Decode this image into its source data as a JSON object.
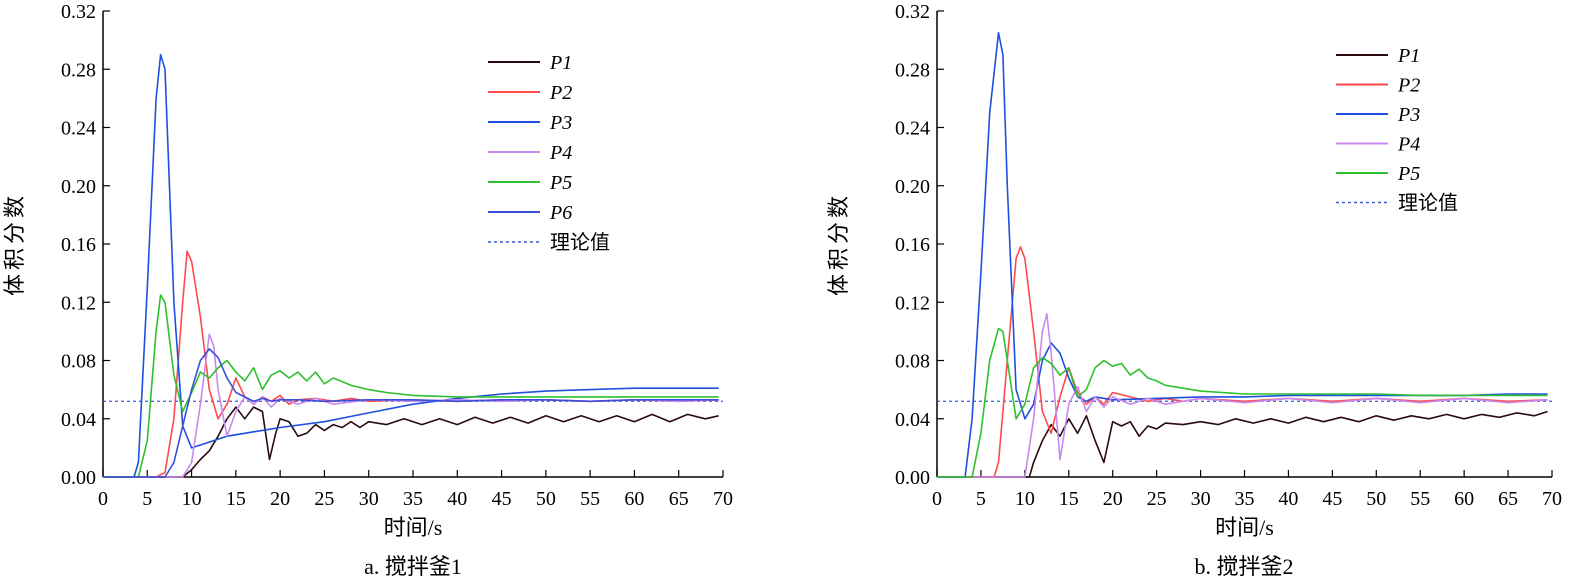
{
  "chart_data": [
    {
      "type": "line",
      "caption": "a. 搅拌釜1",
      "xlabel": "时间/s",
      "ylabel": "体积分数",
      "xlim": [
        0,
        70
      ],
      "ylim": [
        0,
        0.32
      ],
      "xticks": [
        "0",
        "5",
        "10",
        "15",
        "20",
        "25",
        "30",
        "35",
        "40",
        "45",
        "50",
        "55",
        "60",
        "65",
        "70"
      ],
      "yticks": [
        "0.00",
        "0.04",
        "0.08",
        "0.12",
        "0.16",
        "0.20",
        "0.24",
        "0.28",
        "0.32"
      ],
      "grid": false,
      "legend_position": "top-right",
      "theory_label": "理论值",
      "theory_value": 0.052,
      "series": [
        {
          "name": "P1",
          "color": "#2b0b0b",
          "x": [
            0,
            9,
            10,
            11,
            12,
            13,
            14,
            15,
            16,
            17,
            18,
            18.8,
            19.5,
            20,
            21,
            22,
            23,
            24,
            25,
            26,
            27,
            28,
            29,
            30,
            32,
            34,
            36,
            38,
            40,
            42,
            44,
            46,
            48,
            50,
            52,
            54,
            56,
            58,
            60,
            62,
            64,
            66,
            68,
            69.5
          ],
          "y": [
            0,
            0,
            0.005,
            0.012,
            0.018,
            0.028,
            0.04,
            0.048,
            0.04,
            0.048,
            0.045,
            0.012,
            0.03,
            0.04,
            0.038,
            0.028,
            0.03,
            0.036,
            0.032,
            0.036,
            0.034,
            0.038,
            0.034,
            0.038,
            0.036,
            0.04,
            0.036,
            0.04,
            0.036,
            0.041,
            0.037,
            0.041,
            0.037,
            0.042,
            0.038,
            0.042,
            0.038,
            0.042,
            0.038,
            0.043,
            0.038,
            0.043,
            0.04,
            0.042
          ]
        },
        {
          "name": "P2",
          "color": "#ff4a4a",
          "x": [
            0,
            6,
            7,
            8,
            9,
            9.5,
            10,
            11,
            12,
            13,
            14,
            15,
            16,
            17,
            18,
            19,
            20,
            21,
            22,
            24,
            26,
            28,
            30,
            35,
            40,
            45,
            50,
            55,
            60,
            65,
            69.5
          ],
          "y": [
            0,
            0,
            0.003,
            0.04,
            0.12,
            0.155,
            0.148,
            0.11,
            0.06,
            0.04,
            0.05,
            0.068,
            0.055,
            0.05,
            0.055,
            0.052,
            0.056,
            0.05,
            0.053,
            0.054,
            0.052,
            0.054,
            0.052,
            0.053,
            0.052,
            0.053,
            0.053,
            0.052,
            0.053,
            0.052,
            0.053
          ]
        },
        {
          "name": "P3",
          "color": "#1f4fe0",
          "x": [
            0,
            3.5,
            4,
            5,
            6,
            6.5,
            7,
            8,
            9,
            10,
            11,
            12,
            13,
            14,
            16,
            18,
            20,
            25,
            30,
            35,
            40,
            45,
            50,
            55,
            60,
            65,
            69.5
          ],
          "y": [
            0,
            0,
            0.01,
            0.13,
            0.26,
            0.29,
            0.28,
            0.12,
            0.035,
            0.02,
            0.022,
            0.024,
            0.026,
            0.028,
            0.03,
            0.032,
            0.034,
            0.038,
            0.044,
            0.05,
            0.054,
            0.057,
            0.059,
            0.06,
            0.061,
            0.061,
            0.061
          ]
        },
        {
          "name": "P4",
          "color": "#c98af0",
          "x": [
            0,
            9,
            10,
            11,
            12,
            12.5,
            13,
            14,
            15,
            16,
            17,
            18,
            19,
            20,
            22,
            24,
            26,
            30,
            35,
            40,
            45,
            50,
            55,
            60,
            65,
            69.5
          ],
          "y": [
            0,
            0,
            0.01,
            0.05,
            0.098,
            0.09,
            0.06,
            0.028,
            0.045,
            0.055,
            0.05,
            0.055,
            0.048,
            0.054,
            0.05,
            0.054,
            0.05,
            0.053,
            0.052,
            0.053,
            0.052,
            0.053,
            0.052,
            0.053,
            0.052,
            0.053
          ]
        },
        {
          "name": "P5",
          "color": "#2fc02f",
          "x": [
            0,
            4,
            5,
            6,
            6.5,
            7,
            8,
            9,
            10,
            11,
            12,
            13,
            14,
            15,
            16,
            17,
            18,
            19,
            20,
            21,
            22,
            23,
            24,
            25,
            26,
            28,
            30,
            32,
            35,
            40,
            45,
            50,
            55,
            60,
            65,
            69.5
          ],
          "y": [
            0,
            0,
            0.025,
            0.1,
            0.125,
            0.12,
            0.07,
            0.045,
            0.058,
            0.072,
            0.068,
            0.075,
            0.08,
            0.072,
            0.066,
            0.075,
            0.06,
            0.07,
            0.073,
            0.068,
            0.072,
            0.066,
            0.072,
            0.064,
            0.068,
            0.063,
            0.06,
            0.058,
            0.056,
            0.055,
            0.055,
            0.055,
            0.055,
            0.055,
            0.055,
            0.055
          ]
        },
        {
          "name": "P6",
          "color": "#3a4fd8",
          "x": [
            0,
            7,
            8,
            9,
            10,
            11,
            12,
            13,
            14,
            15,
            16,
            17,
            18,
            19,
            20,
            22,
            25,
            30,
            35,
            40,
            45,
            50,
            55,
            60,
            65,
            69.5
          ],
          "y": [
            0,
            0,
            0.01,
            0.035,
            0.06,
            0.08,
            0.088,
            0.082,
            0.068,
            0.058,
            0.055,
            0.052,
            0.054,
            0.052,
            0.053,
            0.053,
            0.052,
            0.053,
            0.053,
            0.052,
            0.053,
            0.053,
            0.052,
            0.053,
            0.053,
            0.053
          ]
        }
      ]
    },
    {
      "type": "line",
      "caption": "b. 搅拌釜2",
      "xlabel": "时间/s",
      "ylabel": "体积分数",
      "xlim": [
        0,
        70
      ],
      "ylim": [
        0,
        0.32
      ],
      "xticks": [
        "0",
        "5",
        "10",
        "15",
        "20",
        "25",
        "30",
        "35",
        "40",
        "45",
        "50",
        "55",
        "60",
        "65",
        "70"
      ],
      "yticks": [
        "0.00",
        "0.04",
        "0.08",
        "0.12",
        "0.16",
        "0.20",
        "0.24",
        "0.28",
        "0.32"
      ],
      "grid": false,
      "legend_position": "top-right",
      "theory_label": "理论值",
      "theory_value": 0.052,
      "series": [
        {
          "name": "P1",
          "color": "#2b0b0b",
          "x": [
            0,
            10.5,
            11,
            12,
            13,
            14,
            15,
            16,
            17,
            18,
            19,
            20,
            21,
            22,
            23,
            24,
            25,
            26,
            28,
            30,
            32,
            34,
            36,
            38,
            40,
            42,
            44,
            46,
            48,
            50,
            52,
            54,
            56,
            58,
            60,
            62,
            64,
            66,
            68,
            69.5
          ],
          "y": [
            0,
            0,
            0.01,
            0.025,
            0.036,
            0.028,
            0.04,
            0.03,
            0.042,
            0.025,
            0.01,
            0.038,
            0.035,
            0.038,
            0.028,
            0.035,
            0.033,
            0.037,
            0.036,
            0.038,
            0.036,
            0.04,
            0.037,
            0.04,
            0.037,
            0.041,
            0.038,
            0.041,
            0.038,
            0.042,
            0.039,
            0.042,
            0.04,
            0.043,
            0.04,
            0.043,
            0.041,
            0.044,
            0.042,
            0.045
          ]
        },
        {
          "name": "P2",
          "color": "#ff4a4a",
          "x": [
            0,
            6.5,
            7,
            8,
            9,
            9.5,
            10,
            11,
            12,
            13,
            14,
            15,
            16,
            17,
            18,
            19,
            20,
            22,
            24,
            26,
            28,
            30,
            35,
            40,
            45,
            50,
            55,
            60,
            65,
            69.5
          ],
          "y": [
            0,
            0,
            0.01,
            0.08,
            0.15,
            0.158,
            0.15,
            0.1,
            0.045,
            0.03,
            0.055,
            0.075,
            0.058,
            0.05,
            0.055,
            0.05,
            0.058,
            0.055,
            0.052,
            0.054,
            0.052,
            0.054,
            0.052,
            0.054,
            0.052,
            0.054,
            0.052,
            0.054,
            0.052,
            0.053
          ]
        },
        {
          "name": "P3",
          "color": "#1f4fe0",
          "x": [
            0,
            3.2,
            4,
            5,
            6,
            7,
            7.5,
            8,
            9,
            10,
            11,
            12,
            13,
            14,
            15,
            16,
            17,
            18,
            20,
            25,
            30,
            35,
            40,
            45,
            50,
            55,
            60,
            65,
            69.5
          ],
          "y": [
            0,
            0,
            0.04,
            0.14,
            0.25,
            0.305,
            0.29,
            0.2,
            0.06,
            0.04,
            0.05,
            0.08,
            0.092,
            0.085,
            0.068,
            0.055,
            0.052,
            0.055,
            0.053,
            0.054,
            0.055,
            0.055,
            0.056,
            0.056,
            0.056,
            0.056,
            0.056,
            0.057,
            0.057
          ]
        },
        {
          "name": "P4",
          "color": "#c98af0",
          "x": [
            0,
            10,
            11,
            12,
            12.5,
            13,
            14,
            15,
            16,
            17,
            18,
            19,
            20,
            22,
            24,
            26,
            30,
            35,
            40,
            45,
            50,
            55,
            60,
            65,
            69.5
          ],
          "y": [
            0,
            0,
            0.04,
            0.1,
            0.112,
            0.085,
            0.012,
            0.05,
            0.062,
            0.045,
            0.055,
            0.048,
            0.055,
            0.05,
            0.054,
            0.05,
            0.054,
            0.051,
            0.054,
            0.051,
            0.054,
            0.051,
            0.054,
            0.051,
            0.053
          ]
        },
        {
          "name": "P5",
          "color": "#2fc02f",
          "x": [
            0,
            4,
            5,
            6,
            7,
            7.5,
            8,
            9,
            10,
            11,
            12,
            13,
            14,
            15,
            16,
            17,
            18,
            19,
            20,
            21,
            22,
            23,
            24,
            25,
            26,
            28,
            30,
            35,
            40,
            45,
            50,
            55,
            60,
            65,
            69.5
          ],
          "y": [
            0,
            0,
            0.03,
            0.08,
            0.102,
            0.1,
            0.08,
            0.04,
            0.05,
            0.075,
            0.082,
            0.078,
            0.07,
            0.075,
            0.055,
            0.06,
            0.075,
            0.08,
            0.076,
            0.078,
            0.07,
            0.074,
            0.068,
            0.066,
            0.063,
            0.061,
            0.059,
            0.057,
            0.057,
            0.057,
            0.057,
            0.056,
            0.056,
            0.056,
            0.056
          ]
        }
      ]
    }
  ]
}
